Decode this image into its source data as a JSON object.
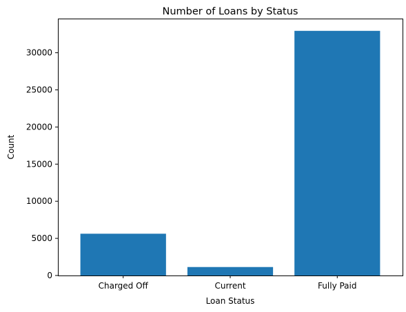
{
  "chart_data": {
    "type": "bar",
    "title": "Number of Loans by Status",
    "xlabel": "Loan Status",
    "ylabel": "Count",
    "categories": [
      "Charged Off",
      "Current",
      "Fully Paid"
    ],
    "values": [
      5627,
      1140,
      32950
    ],
    "ylim": [
      0,
      34600
    ],
    "yticks": [
      0,
      5000,
      10000,
      15000,
      20000,
      25000,
      30000
    ],
    "bar_color": "#1f77b4",
    "grid": false,
    "legend": "none"
  }
}
